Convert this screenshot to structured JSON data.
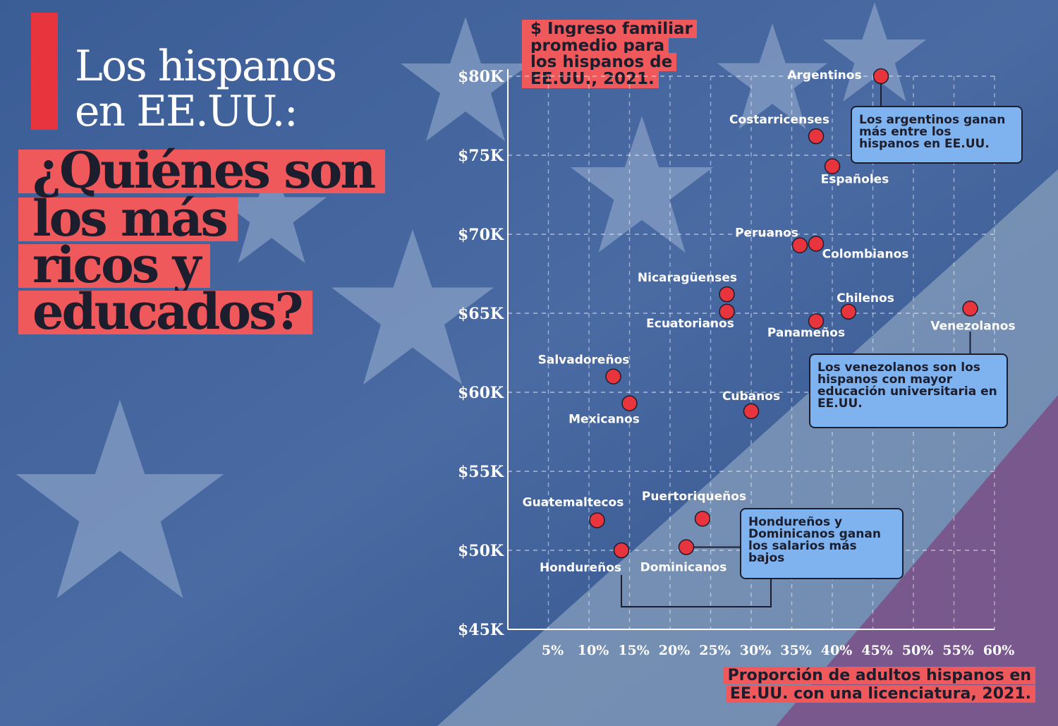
{
  "headline": {
    "line1": "Los hispanos",
    "line2": "en EE.UU.:",
    "q1": "¿Quiénes son",
    "q2": "los más",
    "q3": "ricos y",
    "q4": "educados?"
  },
  "colors": {
    "accent": "#e8343c",
    "highlight": "#f0595c",
    "callout": "#7fb3ef",
    "dot": "#e8343c",
    "dark": "#1c1e2e"
  },
  "callouts": {
    "argentinos": "Los argentinos ganan más entre los hispanos en EE.UU.",
    "venezolanos": "Los venezolanos son los hispanos con mayor educación universitaria en EE.UU.",
    "hondurenos": "Hondureños y Dominicanos ganan los salarios más bajos"
  },
  "chart_data": {
    "type": "scatter",
    "ylabel_lines": [
      "$ Ingreso familiar",
      "promedio para",
      "los hispanos de",
      "EE.UU., 2021."
    ],
    "xlabel_lines": [
      "Proporción de adultos hispanos en",
      "EE.UU. con una licenciatura, 2021."
    ],
    "xlim": [
      0,
      60
    ],
    "ylim": [
      45000,
      80000
    ],
    "xticks": [
      5,
      10,
      15,
      20,
      25,
      30,
      35,
      40,
      45,
      50,
      55,
      60
    ],
    "xtick_labels": [
      "5%",
      "10%",
      "15%",
      "20%",
      "25%",
      "30%",
      "35%",
      "40%",
      "45%",
      "50%",
      "55%",
      "60%"
    ],
    "yticks": [
      45000,
      50000,
      55000,
      60000,
      65000,
      70000,
      75000,
      80000
    ],
    "ytick_labels": [
      "$45K",
      "$50K",
      "$55K",
      "$60K",
      "$65K",
      "$70K",
      "$75K",
      "$80K"
    ],
    "grid": true,
    "points": [
      {
        "name": "Argentinos",
        "x": 46,
        "y": 80000
      },
      {
        "name": "Costarricenses",
        "x": 38,
        "y": 76200
      },
      {
        "name": "Españoles",
        "x": 40,
        "y": 74300
      },
      {
        "name": "Peruanos",
        "x": 36,
        "y": 69300
      },
      {
        "name": "Colombianos",
        "x": 38,
        "y": 69400
      },
      {
        "name": "Nicaragüenses",
        "x": 27,
        "y": 66200
      },
      {
        "name": "Ecuatorianos",
        "x": 27,
        "y": 65100
      },
      {
        "name": "Chilenos",
        "x": 42,
        "y": 65100
      },
      {
        "name": "Panameños",
        "x": 38,
        "y": 64500
      },
      {
        "name": "Venezolanos",
        "x": 57,
        "y": 65300
      },
      {
        "name": "Salvadoreños",
        "x": 13,
        "y": 61000
      },
      {
        "name": "Mexicanos",
        "x": 15,
        "y": 59300
      },
      {
        "name": "Cubanos",
        "x": 30,
        "y": 58800
      },
      {
        "name": "Guatemaltecos",
        "x": 11,
        "y": 51900
      },
      {
        "name": "Puertoriqueños",
        "x": 24,
        "y": 52000
      },
      {
        "name": "Hondureños",
        "x": 14,
        "y": 50000
      },
      {
        "name": "Dominicanos",
        "x": 22,
        "y": 50200
      }
    ]
  }
}
